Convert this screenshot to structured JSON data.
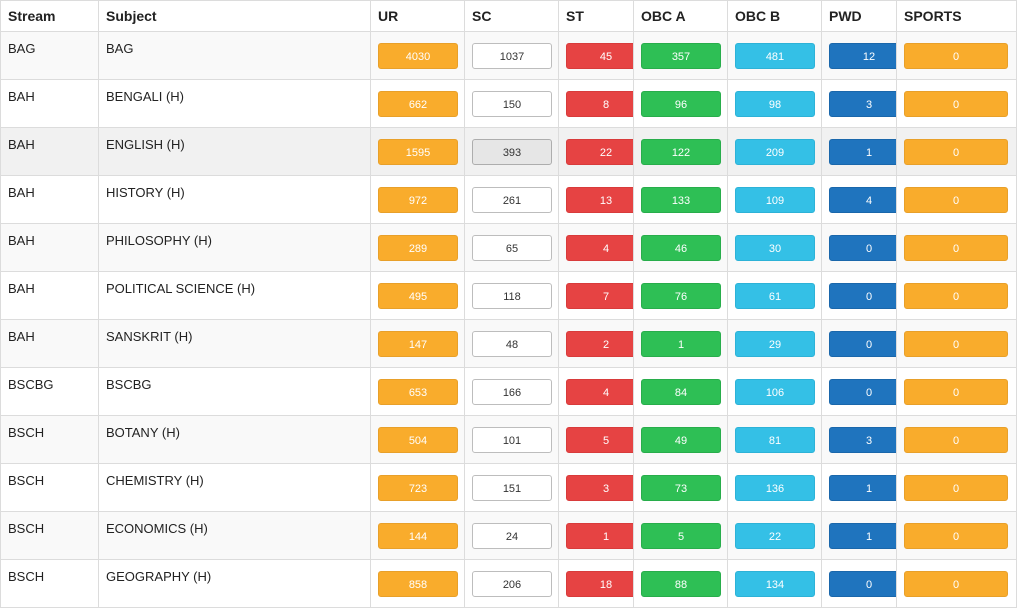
{
  "headers": {
    "stream": "Stream",
    "subject": "Subject",
    "ur": "UR",
    "sc": "SC",
    "st": "ST",
    "obca": "OBC A",
    "obcb": "OBC B",
    "pwd": "PWD",
    "sports": "SPORTS"
  },
  "rows": [
    {
      "stream": "BAG",
      "subject": "BAG",
      "ur": "4030",
      "sc": "1037",
      "st": "45",
      "obca": "357",
      "obcb": "481",
      "pwd": "12",
      "sports": "0"
    },
    {
      "stream": "BAH",
      "subject": "BENGALI (H)",
      "ur": "662",
      "sc": "150",
      "st": "8",
      "obca": "96",
      "obcb": "98",
      "pwd": "3",
      "sports": "0"
    },
    {
      "stream": "BAH",
      "subject": "ENGLISH (H)",
      "ur": "1595",
      "sc": "393",
      "st": "22",
      "obca": "122",
      "obcb": "209",
      "pwd": "1",
      "sports": "0"
    },
    {
      "stream": "BAH",
      "subject": "HISTORY (H)",
      "ur": "972",
      "sc": "261",
      "st": "13",
      "obca": "133",
      "obcb": "109",
      "pwd": "4",
      "sports": "0"
    },
    {
      "stream": "BAH",
      "subject": "PHILOSOPHY (H)",
      "ur": "289",
      "sc": "65",
      "st": "4",
      "obca": "46",
      "obcb": "30",
      "pwd": "0",
      "sports": "0"
    },
    {
      "stream": "BAH",
      "subject": "POLITICAL SCIENCE (H)",
      "ur": "495",
      "sc": "118",
      "st": "7",
      "obca": "76",
      "obcb": "61",
      "pwd": "0",
      "sports": "0"
    },
    {
      "stream": "BAH",
      "subject": "SANSKRIT (H)",
      "ur": "147",
      "sc": "48",
      "st": "2",
      "obca": "1",
      "obcb": "29",
      "pwd": "0",
      "sports": "0"
    },
    {
      "stream": "BSCBG",
      "subject": "BSCBG",
      "ur": "653",
      "sc": "166",
      "st": "4",
      "obca": "84",
      "obcb": "106",
      "pwd": "0",
      "sports": "0"
    },
    {
      "stream": "BSCH",
      "subject": "BOTANY (H)",
      "ur": "504",
      "sc": "101",
      "st": "5",
      "obca": "49",
      "obcb": "81",
      "pwd": "3",
      "sports": "0"
    },
    {
      "stream": "BSCH",
      "subject": "CHEMISTRY (H)",
      "ur": "723",
      "sc": "151",
      "st": "3",
      "obca": "73",
      "obcb": "136",
      "pwd": "1",
      "sports": "0"
    },
    {
      "stream": "BSCH",
      "subject": "ECONOMICS (H)",
      "ur": "144",
      "sc": "24",
      "st": "1",
      "obca": "5",
      "obcb": "22",
      "pwd": "1",
      "sports": "0"
    },
    {
      "stream": "BSCH",
      "subject": "GEOGRAPHY (H)",
      "ur": "858",
      "sc": "206",
      "st": "18",
      "obca": "88",
      "obcb": "134",
      "pwd": "0",
      "sports": "0"
    }
  ],
  "colors": {
    "ur": "#f9ac2c",
    "sc": "#ffffff",
    "st": "#e64343",
    "obc_a": "#2ebf55",
    "obc_b": "#34c0e6",
    "pwd": "#1f74be",
    "sports": "#f9ac2c"
  }
}
